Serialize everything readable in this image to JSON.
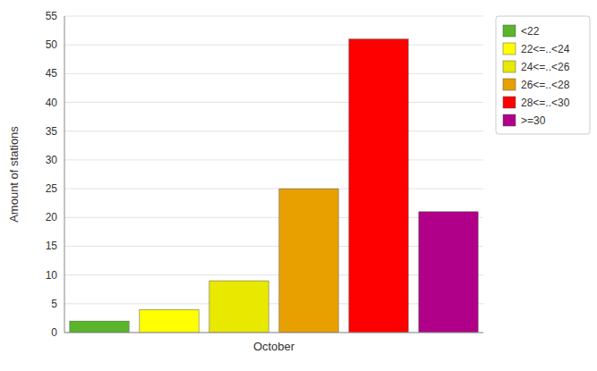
{
  "chart_data": {
    "type": "bar",
    "y_label": "Amount of stations",
    "categories": [
      "October"
    ],
    "series": [
      {
        "name": "<22",
        "color": "#5ab52a",
        "values": [
          2
        ]
      },
      {
        "name": "22<=..<24",
        "color": "#ffff00",
        "values": [
          4
        ]
      },
      {
        "name": "24<=..<26",
        "color": "#e8e800",
        "values": [
          9
        ]
      },
      {
        "name": "26<=..<28",
        "color": "#e8a000",
        "values": [
          25
        ]
      },
      {
        "name": "28<=..<30",
        "color": "#ff0000",
        "values": [
          51
        ]
      },
      {
        "name": ">=30",
        "color": "#b0008a",
        "values": [
          21
        ]
      }
    ],
    "ylim": [
      0,
      55
    ],
    "yticks": [
      0,
      5,
      10,
      15,
      20,
      25,
      30,
      35,
      40,
      45,
      50,
      55
    ],
    "grid": true,
    "legend": "right"
  }
}
